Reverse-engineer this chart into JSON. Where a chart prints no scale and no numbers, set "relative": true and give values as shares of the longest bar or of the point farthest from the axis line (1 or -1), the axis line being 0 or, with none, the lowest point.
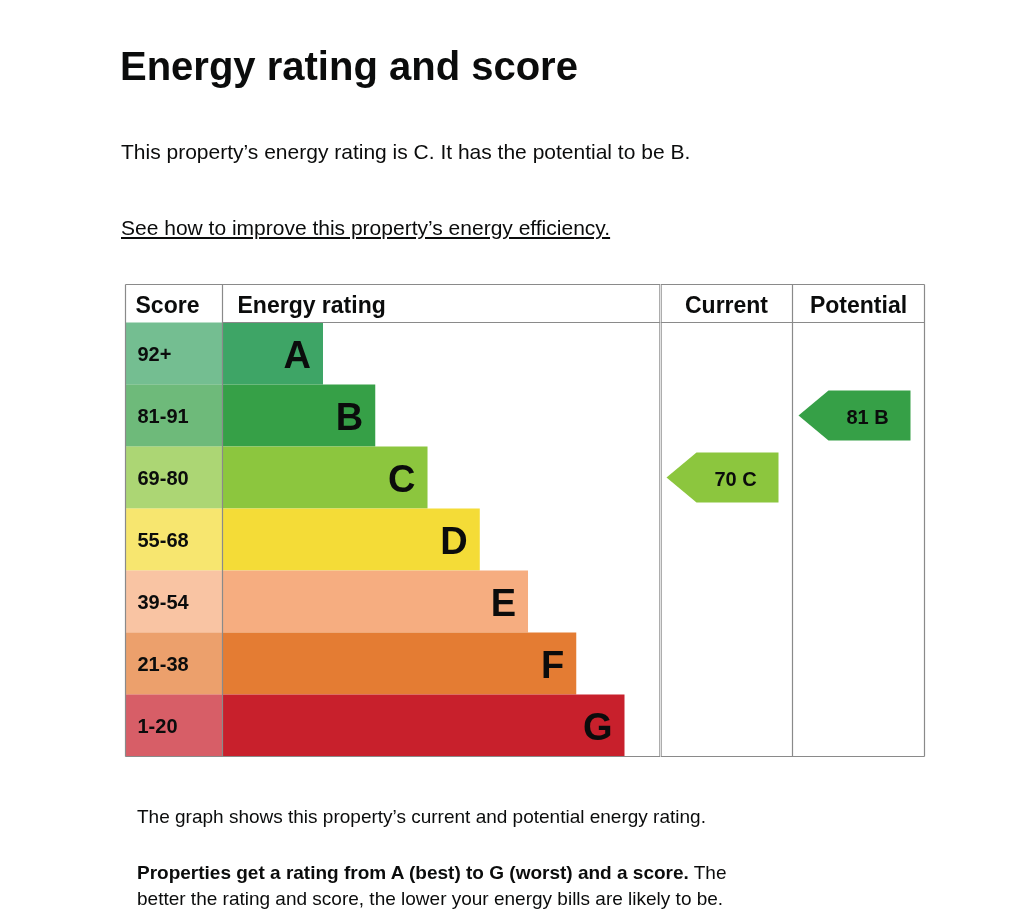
{
  "chart_data": [
    {
      "type": "bar",
      "orientation": "horizontal",
      "relative": true,
      "title": "Energy rating and score",
      "subtitle": "This property’s energy rating is C. It has the potential to be B.",
      "ylabel": "Score",
      "xlabel": "Energy rating",
      "categories": [
        "92+",
        "81-91",
        "69-80",
        "55-68",
        "39-54",
        "21-38",
        "1-20"
      ],
      "values": [
        0.25,
        0.38,
        0.51,
        0.64,
        0.76,
        0.88,
        1
      ],
      "colors": [
        "#3ea566",
        "#36a047",
        "#8cc63e",
        "#f4dc37",
        "#f6ad80",
        "#e47c33",
        "#c8202c"
      ],
      "annotations": [
        "See how to improve this property’s energy efficiency.",
        {
          "text": "A",
          "x": 0.25,
          "y": "92+"
        },
        {
          "text": "B",
          "x": 0.38,
          "y": "81-91"
        },
        {
          "text": "C",
          "x": 0.51,
          "y": "69-80"
        },
        {
          "text": "D",
          "x": 0.64,
          "y": "55-68"
        },
        {
          "text": "E",
          "x": 0.76,
          "y": "39-54"
        },
        {
          "text": "F",
          "x": 0.88,
          "y": "21-38"
        },
        {
          "text": "G",
          "x": 1,
          "y": "1-20"
        },
        "The graph shows this property’s current and potential energy rating.",
        "Properties get a rating from A (best) to G (worst) and a score.",
        "The better the rating and score, the lower your energy bills are likely to be."
      ]
    },
    {
      "type": "heatmap",
      "tick_labels": "x",
      "categories": [
        "Current",
        "Potential"
      ],
      "y_categories": [
        "92+",
        "81-91",
        "69-80",
        "55-68",
        "39-54",
        "21-38",
        "1-20"
      ],
      "cells": [
        [
          null,
          null
        ],
        [
          null,
          81
        ],
        [
          70,
          null
        ],
        [
          null,
          null
        ],
        [
          null,
          null
        ],
        [
          null,
          null
        ],
        [
          null,
          null
        ]
      ],
      "cell_labels": [
        [
          null,
          null
        ],
        [
          null,
          "81 B"
        ],
        [
          "70 C",
          null
        ],
        [
          null,
          null
        ],
        [
          null,
          null
        ],
        [
          null,
          null
        ],
        [
          null,
          null
        ]
      ]
    }
  ]
}
